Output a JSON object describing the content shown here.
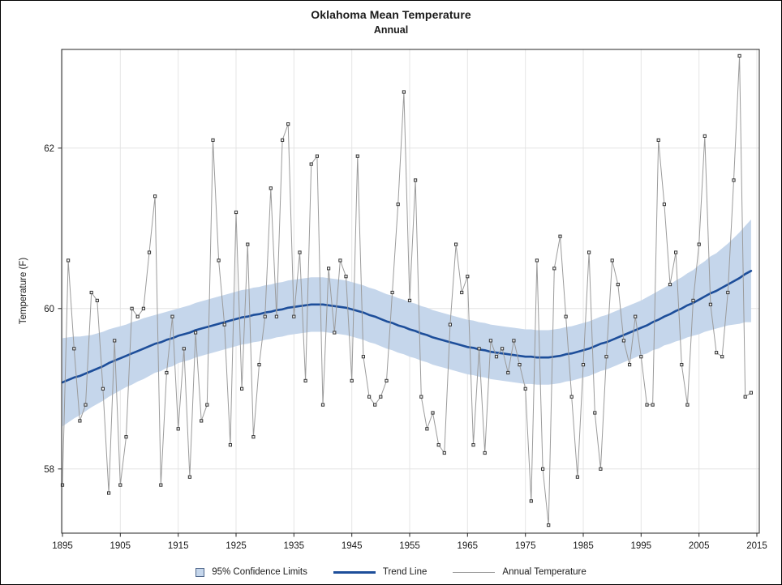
{
  "header": {
    "title": "Oklahoma Mean Temperature",
    "subtitle": "Annual"
  },
  "y_axis": {
    "label": "Temperature (F)",
    "ticks": [
      "58",
      "60",
      "62"
    ]
  },
  "x_axis": {
    "ticks": [
      "1895",
      "1905",
      "1915",
      "1925",
      "1935",
      "1945",
      "1955",
      "1965",
      "1975",
      "1985",
      "1995",
      "2005",
      "2015"
    ]
  },
  "legend": {
    "items": [
      {
        "label": "95% Confidence Limits",
        "swatch": "band-square"
      },
      {
        "label": "Trend Line",
        "swatch": "thick-blue-line"
      },
      {
        "label": "Annual Temperature",
        "swatch": "thin-gray-line"
      }
    ]
  },
  "colors": {
    "band": "#c5d6eb",
    "trend": "#1d4e9a",
    "annual": "#9b9b9b",
    "marker_stroke": "#333333",
    "marker_fill": "#f5f5f5",
    "grid": "#e4e4e4",
    "frame": "#262626",
    "tick": "#262626",
    "text": "#1a1a1a"
  },
  "chart_data": {
    "type": "line",
    "title": "Oklahoma Mean Temperature",
    "subtitle": "Annual",
    "xlabel": "",
    "ylabel": "Temperature (F)",
    "x_ticks": [
      1895,
      1905,
      1915,
      1925,
      1935,
      1945,
      1955,
      1965,
      1975,
      1985,
      1995,
      2005,
      2015
    ],
    "y_ticks": [
      58,
      60,
      62
    ],
    "xlim": [
      1894.86,
      2015.42
    ],
    "ylim": [
      57.2,
      63.23
    ],
    "grid": true,
    "legend_position": "bottom",
    "years_start": 1895,
    "years_end": 2014,
    "series": [
      {
        "name": "Annual Temperature",
        "type": "line",
        "marker": "square",
        "values": [
          57.8,
          60.6,
          59.5,
          58.6,
          58.8,
          60.2,
          60.1,
          59.0,
          57.7,
          59.6,
          57.8,
          58.4,
          60.0,
          59.9,
          60.0,
          60.7,
          61.4,
          57.8,
          59.2,
          59.9,
          58.5,
          59.5,
          57.9,
          59.7,
          58.6,
          58.8,
          62.1,
          60.6,
          59.8,
          58.3,
          61.2,
          59.0,
          60.8,
          58.4,
          59.3,
          59.9,
          61.5,
          59.9,
          62.1,
          62.3,
          59.9,
          60.7,
          59.1,
          61.8,
          61.9,
          58.8,
          60.5,
          59.7,
          60.6,
          60.4,
          59.1,
          61.9,
          59.4,
          58.9,
          58.8,
          58.9,
          59.1,
          60.2,
          61.3,
          62.7,
          60.1,
          61.6,
          58.9,
          58.5,
          58.7,
          58.3,
          58.2,
          59.8,
          60.8,
          60.2,
          60.4,
          58.3,
          59.5,
          58.2,
          59.6,
          59.4,
          59.5,
          59.2,
          59.6,
          59.3,
          59.0,
          57.6,
          60.6,
          58.0,
          57.3,
          60.5,
          60.9,
          59.9,
          58.9,
          57.9,
          59.3,
          60.7,
          58.7,
          58.0,
          59.4,
          60.6,
          60.3,
          59.6,
          59.3,
          59.9,
          59.4,
          58.8,
          58.8,
          62.1,
          61.3,
          60.3,
          60.7,
          59.3,
          58.8,
          60.1,
          60.8,
          62.15,
          60.05,
          59.45,
          59.4,
          60.2,
          61.6,
          63.15,
          58.9,
          58.95
        ]
      },
      {
        "name": "Trend Line",
        "type": "smooth-line",
        "values": [
          59.08,
          59.11,
          59.14,
          59.16,
          59.19,
          59.22,
          59.25,
          59.28,
          59.32,
          59.35,
          59.38,
          59.41,
          59.44,
          59.47,
          59.5,
          59.53,
          59.56,
          59.58,
          59.61,
          59.63,
          59.66,
          59.68,
          59.7,
          59.73,
          59.75,
          59.77,
          59.79,
          59.81,
          59.83,
          59.85,
          59.87,
          59.89,
          59.9,
          59.92,
          59.93,
          59.95,
          59.96,
          59.98,
          59.99,
          60.01,
          60.02,
          60.03,
          60.04,
          60.05,
          60.05,
          60.05,
          60.04,
          60.03,
          60.02,
          60.01,
          59.99,
          59.97,
          59.95,
          59.92,
          59.9,
          59.87,
          59.84,
          59.82,
          59.79,
          59.77,
          59.74,
          59.72,
          59.69,
          59.67,
          59.64,
          59.62,
          59.6,
          59.58,
          59.56,
          59.54,
          59.52,
          59.51,
          59.49,
          59.48,
          59.46,
          59.45,
          59.44,
          59.43,
          59.42,
          59.41,
          59.4,
          59.4,
          59.39,
          59.39,
          59.39,
          59.4,
          59.41,
          59.43,
          59.44,
          59.46,
          59.48,
          59.5,
          59.53,
          59.56,
          59.58,
          59.61,
          59.64,
          59.67,
          59.7,
          59.73,
          59.76,
          59.79,
          59.83,
          59.86,
          59.9,
          59.93,
          59.97,
          60.0,
          60.04,
          60.07,
          60.11,
          60.15,
          60.19,
          60.22,
          60.26,
          60.3,
          60.34,
          60.38,
          60.43,
          60.47
        ]
      },
      {
        "name": "95% Confidence Limits",
        "type": "band",
        "halfwidth": [
          0.55,
          0.53,
          0.51,
          0.49,
          0.47,
          0.45,
          0.44,
          0.43,
          0.42,
          0.41,
          0.4,
          0.39,
          0.39,
          0.38,
          0.38,
          0.37,
          0.36,
          0.36,
          0.35,
          0.35,
          0.34,
          0.34,
          0.34,
          0.34,
          0.34,
          0.34,
          0.34,
          0.34,
          0.34,
          0.34,
          0.34,
          0.34,
          0.34,
          0.34,
          0.34,
          0.34,
          0.34,
          0.34,
          0.34,
          0.34,
          0.34,
          0.34,
          0.34,
          0.34,
          0.34,
          0.34,
          0.34,
          0.34,
          0.34,
          0.34,
          0.34,
          0.34,
          0.34,
          0.34,
          0.34,
          0.34,
          0.34,
          0.34,
          0.34,
          0.34,
          0.34,
          0.34,
          0.34,
          0.34,
          0.34,
          0.34,
          0.34,
          0.34,
          0.34,
          0.34,
          0.34,
          0.34,
          0.34,
          0.34,
          0.34,
          0.34,
          0.34,
          0.34,
          0.34,
          0.34,
          0.34,
          0.34,
          0.34,
          0.34,
          0.34,
          0.34,
          0.34,
          0.34,
          0.34,
          0.34,
          0.34,
          0.34,
          0.34,
          0.34,
          0.34,
          0.34,
          0.34,
          0.34,
          0.34,
          0.34,
          0.34,
          0.35,
          0.35,
          0.36,
          0.36,
          0.37,
          0.38,
          0.39,
          0.4,
          0.41,
          0.43,
          0.44,
          0.46,
          0.47,
          0.49,
          0.51,
          0.54,
          0.57,
          0.6,
          0.64
        ]
      }
    ]
  }
}
